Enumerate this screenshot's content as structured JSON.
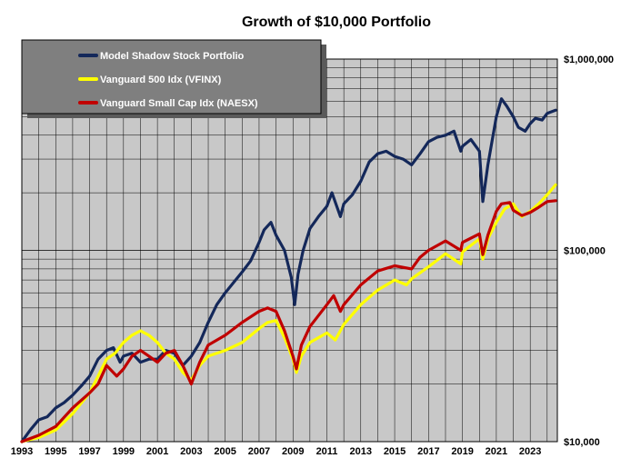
{
  "chart_data": {
    "type": "line",
    "title": "Growth of $10,000 Portfolio",
    "xlabel": "",
    "ylabel": "",
    "y_scale": "log",
    "xlim": [
      1993.0,
      2024.6
    ],
    "ylim": [
      10000,
      1000000
    ],
    "x_tick_labels": [
      "1993",
      "1995",
      "1997",
      "1999",
      "2001",
      "2003",
      "2005",
      "2007",
      "2009",
      "2011",
      "2013",
      "2015",
      "2017",
      "2019",
      "2021",
      "2023"
    ],
    "y_tick_labels": [
      "$1,000,000",
      "$100,000",
      "$10,000"
    ],
    "y_tick_values": [
      1000000,
      100000,
      10000
    ],
    "grid": true,
    "legend_position": "top-left",
    "plot_background": "#c8c8c8",
    "series": [
      {
        "name": "Model Shadow Stock Portfolio",
        "color": "#14285a",
        "x": [
          1993.0,
          1993.5,
          1994.0,
          1994.5,
          1995.0,
          1995.5,
          1996.0,
          1996.5,
          1997.0,
          1997.5,
          1998.0,
          1998.4,
          1998.8,
          1999.0,
          1999.5,
          2000.0,
          2000.5,
          2001.0,
          2001.5,
          2002.0,
          2002.5,
          2003.0,
          2003.5,
          2004.0,
          2004.5,
          2005.0,
          2005.5,
          2006.0,
          2006.5,
          2007.0,
          2007.3,
          2007.7,
          2008.0,
          2008.5,
          2008.9,
          2009.1,
          2009.3,
          2009.6,
          2010.0,
          2010.5,
          2011.0,
          2011.3,
          2011.8,
          2012.0,
          2012.5,
          2013.0,
          2013.5,
          2014.0,
          2014.5,
          2015.0,
          2015.5,
          2016.0,
          2016.5,
          2017.0,
          2017.5,
          2018.0,
          2018.5,
          2018.9,
          2019.0,
          2019.5,
          2020.0,
          2020.2,
          2020.5,
          2021.0,
          2021.3,
          2021.6,
          2022.0,
          2022.3,
          2022.7,
          2023.0,
          2023.3,
          2023.7,
          2024.0,
          2024.5
        ],
        "values": [
          10000,
          11500,
          13000,
          13500,
          15000,
          16000,
          17500,
          19500,
          22000,
          27000,
          30000,
          31000,
          26000,
          28000,
          29000,
          26000,
          27000,
          27000,
          30000,
          29000,
          25000,
          28000,
          33000,
          42000,
          52000,
          60000,
          68000,
          77000,
          88000,
          110000,
          128000,
          140000,
          120000,
          100000,
          72000,
          52000,
          75000,
          100000,
          130000,
          150000,
          170000,
          200000,
          150000,
          175000,
          195000,
          230000,
          290000,
          320000,
          330000,
          310000,
          300000,
          280000,
          320000,
          370000,
          390000,
          400000,
          420000,
          330000,
          350000,
          380000,
          330000,
          180000,
          280000,
          500000,
          620000,
          570000,
          500000,
          440000,
          420000,
          460000,
          490000,
          480000,
          520000,
          540000
        ]
      },
      {
        "name": "Vanguard 500 Idx (VFINX)",
        "color": "#ffff00",
        "x": [
          1993.0,
          1994.0,
          1995.0,
          1996.0,
          1997.0,
          1997.5,
          1998.0,
          1998.5,
          1999.0,
          1999.5,
          2000.0,
          2000.5,
          2001.0,
          2001.5,
          2002.0,
          2002.5,
          2003.0,
          2003.5,
          2004.0,
          2005.0,
          2006.0,
          2007.0,
          2007.5,
          2008.0,
          2008.5,
          2009.0,
          2009.2,
          2009.5,
          2010.0,
          2011.0,
          2011.5,
          2012.0,
          2013.0,
          2014.0,
          2015.0,
          2015.7,
          2016.0,
          2017.0,
          2018.0,
          2018.9,
          2019.0,
          2020.0,
          2020.2,
          2020.5,
          2021.0,
          2021.5,
          2022.0,
          2022.5,
          2023.0,
          2023.5,
          2024.0,
          2024.5
        ],
        "values": [
          10000,
          10500,
          11500,
          14000,
          18000,
          22000,
          27000,
          29000,
          33000,
          36000,
          38000,
          36000,
          33000,
          29000,
          27000,
          23000,
          21000,
          25000,
          28000,
          30000,
          33000,
          39000,
          42000,
          43000,
          35000,
          27000,
          23000,
          28000,
          33000,
          37000,
          34000,
          41000,
          52000,
          62000,
          70000,
          66000,
          71000,
          82000,
          96000,
          85000,
          98000,
          115000,
          90000,
          115000,
          140000,
          165000,
          175000,
          150000,
          160000,
          175000,
          195000,
          220000
        ]
      },
      {
        "name": "Vanguard Small Cap Idx (NAESX)",
        "color": "#c00000",
        "x": [
          1993.0,
          1994.0,
          1995.0,
          1996.0,
          1997.0,
          1997.5,
          1998.0,
          1998.6,
          1999.0,
          1999.5,
          2000.0,
          2000.5,
          2001.0,
          2001.5,
          2002.0,
          2002.5,
          2003.0,
          2003.5,
          2004.0,
          2005.0,
          2006.0,
          2007.0,
          2007.5,
          2008.0,
          2008.5,
          2009.0,
          2009.2,
          2009.5,
          2010.0,
          2011.0,
          2011.4,
          2011.8,
          2012.0,
          2013.0,
          2014.0,
          2015.0,
          2016.0,
          2016.5,
          2017.0,
          2018.0,
          2018.9,
          2019.0,
          2020.0,
          2020.2,
          2020.5,
          2021.0,
          2021.3,
          2021.8,
          2022.0,
          2022.5,
          2023.0,
          2023.5,
          2024.0,
          2024.5
        ],
        "values": [
          10000,
          10800,
          12000,
          15000,
          18000,
          20000,
          25000,
          22000,
          24000,
          28000,
          30000,
          28000,
          26000,
          29000,
          30000,
          25000,
          20000,
          26000,
          32000,
          36000,
          42000,
          48000,
          50000,
          48000,
          38000,
          28000,
          24000,
          32000,
          40000,
          52000,
          58000,
          48000,
          52000,
          66000,
          78000,
          83000,
          80000,
          92000,
          100000,
          112000,
          100000,
          110000,
          122000,
          95000,
          120000,
          160000,
          175000,
          178000,
          162000,
          152000,
          158000,
          168000,
          180000,
          182000
        ]
      }
    ]
  }
}
